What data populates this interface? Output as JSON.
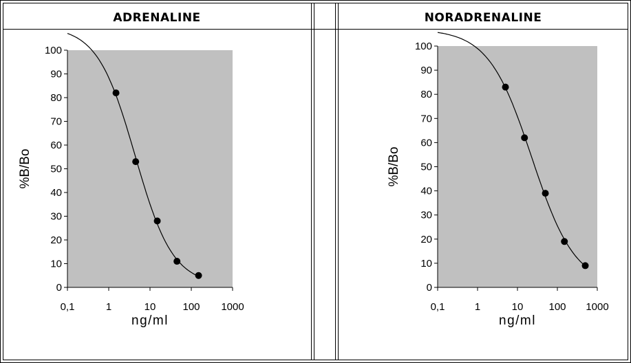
{
  "table": {
    "headers": [
      "ADRENALINE",
      "",
      "NORADRENALINE"
    ]
  },
  "chart_data": [
    {
      "type": "scatter",
      "title": "ADRENALINE",
      "xlabel": "ng/ml",
      "ylabel": "%B/Bo",
      "xscale": "log",
      "xlim": [
        0.1,
        1000
      ],
      "ylim": [
        0,
        100
      ],
      "xticks": [
        "0,1",
        "1",
        "10",
        "100",
        "1000"
      ],
      "yticks": [
        "0",
        "10",
        "20",
        "30",
        "40",
        "50",
        "60",
        "70",
        "80",
        "90",
        "100"
      ],
      "x": [
        1.5,
        4.5,
        15,
        45,
        150
      ],
      "y": [
        82,
        53,
        28,
        11,
        5
      ],
      "fitted_curve": true,
      "plot_background": "#c0c0c0",
      "grid": false,
      "marker_color": "#000000"
    },
    {
      "type": "scatter",
      "title": "NORADRENALINE",
      "xlabel": "ng/ml",
      "ylabel": "%B/Bo",
      "xscale": "log",
      "xlim": [
        0.1,
        1000
      ],
      "ylim": [
        0,
        100
      ],
      "xticks": [
        "0,1",
        "1",
        "10",
        "100",
        "1000"
      ],
      "yticks": [
        "0",
        "10",
        "20",
        "30",
        "40",
        "50",
        "60",
        "70",
        "80",
        "90",
        "100"
      ],
      "x": [
        5,
        15,
        50,
        150,
        500
      ],
      "y": [
        83,
        62,
        39,
        19,
        9
      ],
      "fitted_curve": true,
      "plot_background": "#c0c0c0",
      "grid": false,
      "marker_color": "#000000"
    }
  ]
}
